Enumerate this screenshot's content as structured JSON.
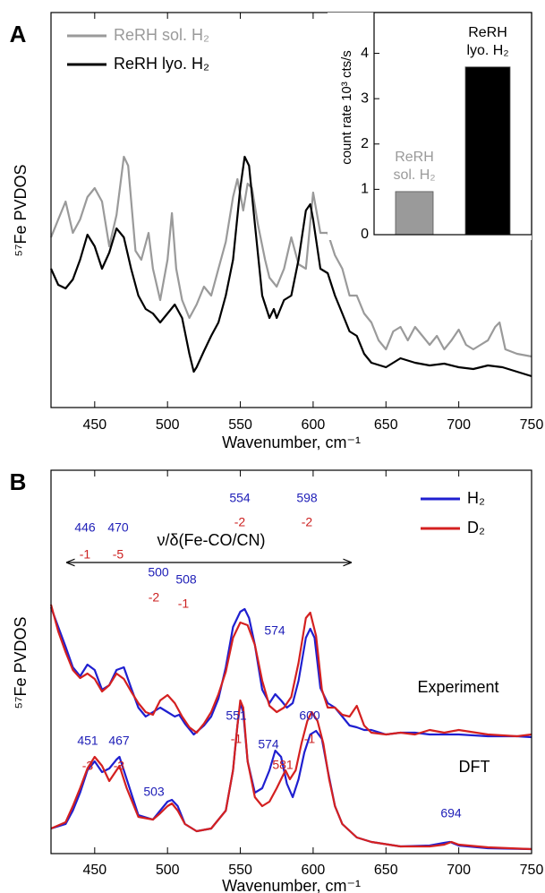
{
  "chart_data": [
    {
      "type": "line",
      "panel_label": "A",
      "xlabel": "Wavenumber, cm⁻¹",
      "ylabel": "⁵⁷Fe PVDOS",
      "xlim": [
        420,
        750
      ],
      "xticks": [
        450,
        500,
        550,
        600,
        650,
        700,
        750
      ],
      "ylim": [
        0,
        441
      ],
      "legend": "upper left",
      "series": [
        {
          "name": "ReRH sol. H₂",
          "color": "#9a9a9a",
          "x": [
            420,
            425,
            430,
            435,
            440,
            445,
            450,
            455,
            460,
            465,
            470,
            473,
            478,
            482,
            487,
            490,
            495,
            500,
            503,
            506,
            510,
            515,
            520,
            525,
            530,
            535,
            540,
            545,
            548,
            552,
            555,
            558,
            562,
            567,
            570,
            575,
            580,
            585,
            590,
            595,
            600,
            605,
            610,
            615,
            620,
            625,
            630,
            635,
            640,
            645,
            650,
            655,
            660,
            665,
            670,
            675,
            680,
            685,
            690,
            695,
            700,
            705,
            710,
            715,
            720,
            725,
            728,
            732,
            740,
            750
          ],
          "values": [
            190,
            210,
            230,
            195,
            210,
            235,
            245,
            230,
            180,
            215,
            280,
            270,
            175,
            165,
            195,
            155,
            120,
            165,
            217,
            155,
            120,
            100,
            115,
            135,
            125,
            155,
            185,
            235,
            255,
            220,
            250,
            245,
            205,
            165,
            145,
            135,
            155,
            190,
            160,
            155,
            240,
            195,
            195,
            170,
            155,
            125,
            125,
            105,
            95,
            75,
            65,
            85,
            90,
            75,
            90,
            80,
            70,
            80,
            65,
            75,
            87,
            70,
            65,
            70,
            75,
            90,
            95,
            65,
            60,
            57
          ]
        },
        {
          "name": "ReRH lyo. H₂",
          "color": "#000000",
          "x": [
            420,
            425,
            430,
            435,
            440,
            445,
            450,
            455,
            460,
            465,
            470,
            475,
            480,
            485,
            490,
            495,
            500,
            505,
            510,
            515,
            518,
            520,
            525,
            530,
            535,
            540,
            545,
            550,
            553,
            556,
            560,
            565,
            570,
            573,
            575,
            580,
            585,
            590,
            595,
            598,
            600,
            605,
            610,
            615,
            620,
            625,
            630,
            635,
            640,
            650,
            660,
            670,
            680,
            690,
            700,
            710,
            720,
            730,
            740,
            750
          ],
          "values": [
            155,
            137,
            133,
            143,
            165,
            193,
            180,
            155,
            173,
            200,
            190,
            155,
            125,
            110,
            105,
            95,
            105,
            115,
            100,
            60,
            40,
            45,
            63,
            80,
            95,
            125,
            165,
            245,
            280,
            270,
            205,
            125,
            100,
            110,
            100,
            120,
            125,
            165,
            220,
            227,
            210,
            155,
            150,
            125,
            105,
            85,
            80,
            60,
            50,
            45,
            55,
            50,
            47,
            49,
            45,
            43,
            47,
            45,
            40,
            35
          ]
        }
      ]
    },
    {
      "type": "bar",
      "ylabel": "count rate 10³ cts/s",
      "categories": [
        [
          "ReRH",
          "sol. H₂"
        ],
        [
          "ReRH",
          "lyo. H₂"
        ]
      ],
      "values": [
        0.95,
        3.7
      ],
      "colors": [
        "#9a9a9a",
        "#000000"
      ],
      "ylim": [
        0,
        4.9
      ],
      "yticks": [
        0,
        1,
        2,
        3,
        4
      ]
    },
    {
      "type": "line",
      "panel_label": "B",
      "xlabel": "Wavenumber, cm⁻¹",
      "ylabel": "⁵⁷Fe PVDOS",
      "xlim": [
        420,
        750
      ],
      "xticks": [
        450,
        500,
        550,
        600,
        650,
        700,
        750
      ],
      "ylim": [
        0,
        428
      ],
      "legend": "upper right",
      "arrow_label": "ν/δ(Fe-CO/CN)",
      "labels": [
        "Experiment",
        "DFT"
      ],
      "series": [
        {
          "name": "H₂",
          "color": "#1f1fd0",
          "x": [
            420,
            425,
            430,
            435,
            440,
            445,
            450,
            455,
            460,
            465,
            470,
            475,
            480,
            485,
            490,
            495,
            500,
            505,
            508,
            512,
            518,
            525,
            530,
            535,
            540,
            545,
            550,
            553,
            556,
            560,
            565,
            570,
            574,
            578,
            582,
            586,
            590,
            595,
            598,
            601,
            605,
            610,
            615,
            620,
            625,
            630,
            635,
            640,
            650,
            660,
            670,
            680,
            700,
            720,
            740,
            750
          ],
          "values": [
            275,
            253,
            231,
            208,
            198,
            211,
            205,
            183,
            188,
            205,
            208,
            185,
            163,
            153,
            158,
            163,
            158,
            153,
            155,
            145,
            133,
            143,
            153,
            173,
            208,
            253,
            270,
            273,
            263,
            233,
            183,
            168,
            178,
            171,
            163,
            168,
            193,
            241,
            251,
            241,
            185,
            168,
            163,
            153,
            143,
            141,
            138,
            138,
            133,
            135,
            135,
            133,
            133,
            131,
            131,
            130
          ]
        },
        {
          "name": "D₂",
          "color": "#d42020",
          "x": [
            420,
            425,
            430,
            435,
            440,
            445,
            450,
            455,
            460,
            465,
            470,
            475,
            480,
            485,
            490,
            495,
            500,
            505,
            510,
            515,
            520,
            525,
            530,
            535,
            540,
            545,
            550,
            555,
            560,
            565,
            570,
            575,
            580,
            585,
            590,
            595,
            598,
            602,
            606,
            610,
            615,
            620,
            625,
            630,
            635,
            640,
            650,
            660,
            670,
            680,
            690,
            700,
            720,
            740,
            750
          ],
          "values": [
            278,
            248,
            225,
            205,
            196,
            201,
            195,
            181,
            188,
            201,
            195,
            181,
            168,
            158,
            155,
            171,
            177,
            168,
            153,
            141,
            135,
            145,
            158,
            178,
            203,
            241,
            258,
            255,
            233,
            193,
            165,
            158,
            163,
            175,
            213,
            263,
            269,
            243,
            183,
            163,
            163,
            155,
            153,
            165,
            143,
            135,
            133,
            135,
            133,
            138,
            135,
            138,
            133,
            131,
            133
          ]
        },
        {
          "color": "#1f1fd0",
          "x": [
            420,
            430,
            435,
            440,
            445,
            450,
            455,
            460,
            465,
            467,
            472,
            480,
            490,
            495,
            500,
            503,
            507,
            512,
            520,
            530,
            540,
            545,
            548,
            550,
            552,
            555,
            560,
            565,
            570,
            574,
            578,
            582,
            586,
            590,
            594,
            598,
            602,
            606,
            610,
            615,
            620,
            630,
            640,
            660,
            680,
            690,
            694,
            700,
            720,
            750
          ],
          "values": [
            28,
            33,
            48,
            68,
            93,
            103,
            91,
            95,
            105,
            108,
            83,
            43,
            38,
            48,
            58,
            60,
            53,
            33,
            25,
            28,
            48,
            93,
            143,
            168,
            158,
            103,
            68,
            73,
            93,
            115,
            108,
            78,
            63,
            83,
            113,
            133,
            137,
            128,
            93,
            53,
            33,
            18,
            13,
            8,
            9,
            12,
            13,
            9,
            6,
            5
          ]
        },
        {
          "color": "#d42020",
          "x": [
            420,
            430,
            435,
            440,
            445,
            450,
            455,
            460,
            465,
            467,
            472,
            480,
            490,
            495,
            500,
            503,
            507,
            512,
            520,
            530,
            540,
            545,
            548,
            550,
            552,
            555,
            560,
            565,
            570,
            575,
            578,
            581,
            584,
            588,
            592,
            596,
            599,
            603,
            607,
            611,
            615,
            620,
            630,
            640,
            660,
            680,
            690,
            695,
            700,
            720,
            750
          ],
          "values": [
            28,
            35,
            53,
            73,
            95,
            108,
            98,
            81,
            93,
            98,
            73,
            41,
            38,
            45,
            53,
            56,
            48,
            33,
            25,
            28,
            48,
            93,
            143,
            171,
            163,
            103,
            63,
            53,
            58,
            73,
            83,
            93,
            83,
            93,
            123,
            148,
            158,
            148,
            123,
            83,
            53,
            33,
            18,
            13,
            8,
            8,
            10,
            13,
            10,
            7,
            5
          ]
        }
      ],
      "annotations": [
        {
          "text": "446",
          "color": "#2020b8"
        },
        {
          "text": "-1",
          "color": "#cc2020"
        },
        {
          "text": "470",
          "color": "#2020b8"
        },
        {
          "text": "-5",
          "color": "#cc2020"
        },
        {
          "text": "500",
          "color": "#2020b8"
        },
        {
          "text": "-2",
          "color": "#cc2020"
        },
        {
          "text": "508",
          "color": "#2020b8"
        },
        {
          "text": "-1",
          "color": "#cc2020"
        },
        {
          "text": "554",
          "color": "#2020b8"
        },
        {
          "text": "-2",
          "color": "#cc2020"
        },
        {
          "text": "574",
          "color": "#2020b8"
        },
        {
          "text": "598",
          "color": "#2020b8"
        },
        {
          "text": "-2",
          "color": "#cc2020"
        },
        {
          "text": "451",
          "color": "#2020b8"
        },
        {
          "text": "-3",
          "color": "#cc2020"
        },
        {
          "text": "467",
          "color": "#2020b8"
        },
        {
          "text": "-3",
          "color": "#cc2020"
        },
        {
          "text": "503",
          "color": "#2020b8"
        },
        {
          "text": "551",
          "color": "#2020b8"
        },
        {
          "text": "-1",
          "color": "#cc2020"
        },
        {
          "text": "574",
          "color": "#2020b8"
        },
        {
          "text": "581",
          "color": "#cc2020"
        },
        {
          "text": "600",
          "color": "#2020b8"
        },
        {
          "text": "-1",
          "color": "#cc2020"
        },
        {
          "text": "694",
          "color": "#2020b8"
        }
      ]
    }
  ]
}
